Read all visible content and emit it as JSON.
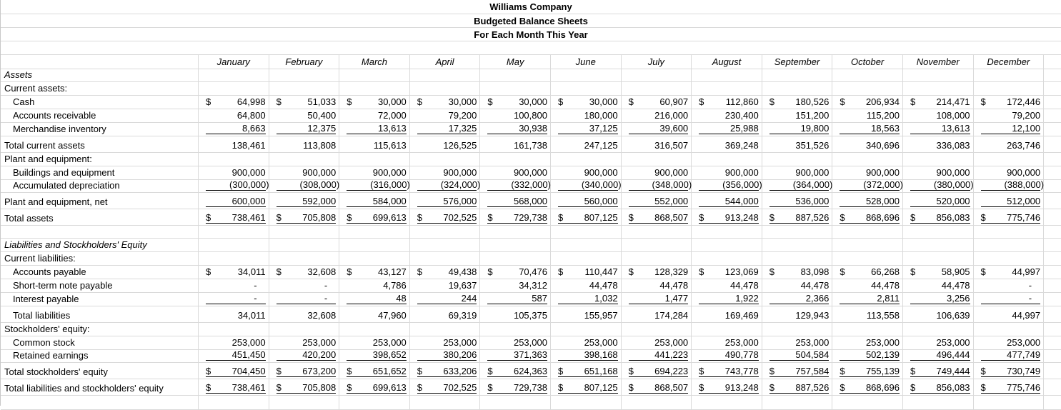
{
  "header": {
    "company": "Williams Company",
    "statement": "Budgeted Balance Sheets",
    "period": "For Each Month This Year"
  },
  "months": [
    "January",
    "February",
    "March",
    "April",
    "May",
    "June",
    "July",
    "August",
    "September",
    "October",
    "November",
    "December"
  ],
  "currency_symbol": "$",
  "rows": [
    {
      "label": "Assets",
      "italic": true
    },
    {
      "label": "Current assets:"
    },
    {
      "label": "Cash",
      "indent": true,
      "dollar": true,
      "values": [
        "64,998",
        "51,033",
        "30,000",
        "30,000",
        "30,000",
        "30,000",
        "60,907",
        "112,860",
        "180,526",
        "206,934",
        "214,471",
        "172,446"
      ]
    },
    {
      "label": "Accounts receivable",
      "indent": true,
      "values": [
        "64,800",
        "50,400",
        "72,000",
        "79,200",
        "100,800",
        "180,000",
        "216,000",
        "230,400",
        "151,200",
        "115,200",
        "108,000",
        "79,200"
      ]
    },
    {
      "label": "Merchandise inventory",
      "indent": true,
      "underline": true,
      "values": [
        "8,663",
        "12,375",
        "13,613",
        "17,325",
        "30,938",
        "37,125",
        "39,600",
        "25,988",
        "19,800",
        "18,563",
        "13,613",
        "12,100"
      ]
    },
    {
      "label": "Total current assets",
      "values": [
        "138,461",
        "113,808",
        "115,613",
        "126,525",
        "161,738",
        "247,125",
        "316,507",
        "369,248",
        "351,526",
        "340,696",
        "336,083",
        "263,746"
      ]
    },
    {
      "label": "Plant and equipment:"
    },
    {
      "label": "Buildings and equipment",
      "indent": true,
      "values": [
        "900,000",
        "900,000",
        "900,000",
        "900,000",
        "900,000",
        "900,000",
        "900,000",
        "900,000",
        "900,000",
        "900,000",
        "900,000",
        "900,000"
      ]
    },
    {
      "label": "Accumulated depreciation",
      "indent": true,
      "underline": true,
      "values": [
        "(300,000)",
        "(308,000)",
        "(316,000)",
        "(324,000)",
        "(332,000)",
        "(340,000)",
        "(348,000)",
        "(356,000)",
        "(364,000)",
        "(372,000)",
        "(380,000)",
        "(388,000)"
      ]
    },
    {
      "label": "Plant and equipment, net",
      "underline": true,
      "values": [
        "600,000",
        "592,000",
        "584,000",
        "576,000",
        "568,000",
        "560,000",
        "552,000",
        "544,000",
        "536,000",
        "528,000",
        "520,000",
        "512,000"
      ]
    },
    {
      "label": "Total assets",
      "dollar": true,
      "underline": true,
      "values": [
        "738,461",
        "705,808",
        "699,613",
        "702,525",
        "729,738",
        "807,125",
        "868,507",
        "913,248",
        "887,526",
        "868,696",
        "856,083",
        "775,746"
      ]
    },
    {
      "label": ""
    },
    {
      "label": "Liabilities and Stockholders' Equity",
      "italic": true
    },
    {
      "label": "Current liabilities:"
    },
    {
      "label": "Accounts payable",
      "indent": true,
      "dollar": true,
      "values": [
        "34,011",
        "32,608",
        "43,127",
        "49,438",
        "70,476",
        "110,447",
        "128,329",
        "123,069",
        "83,098",
        "66,268",
        "58,905",
        "44,997"
      ]
    },
    {
      "label": "Short-term note payable",
      "indent": true,
      "values": [
        "-",
        "-",
        "4,786",
        "19,637",
        "34,312",
        "44,478",
        "44,478",
        "44,478",
        "44,478",
        "44,478",
        "44,478",
        "-"
      ]
    },
    {
      "label": "Interest payable",
      "indent": true,
      "underline": true,
      "values": [
        "-",
        "-",
        "48",
        "244",
        "587",
        "1,032",
        "1,477",
        "1,922",
        "2,366",
        "2,811",
        "3,256",
        "-"
      ]
    },
    {
      "label": "Total liabilities",
      "indent": true,
      "values": [
        "34,011",
        "32,608",
        "47,960",
        "69,319",
        "105,375",
        "155,957",
        "174,284",
        "169,469",
        "129,943",
        "113,558",
        "106,639",
        "44,997"
      ]
    },
    {
      "label": "Stockholders' equity:"
    },
    {
      "label": "Common stock",
      "indent": true,
      "values": [
        "253,000",
        "253,000",
        "253,000",
        "253,000",
        "253,000",
        "253,000",
        "253,000",
        "253,000",
        "253,000",
        "253,000",
        "253,000",
        "253,000"
      ]
    },
    {
      "label": "Retained earnings",
      "indent": true,
      "underline": true,
      "values": [
        "451,450",
        "420,200",
        "398,652",
        "380,206",
        "371,363",
        "398,168",
        "441,223",
        "490,778",
        "504,584",
        "502,139",
        "496,444",
        "477,749"
      ]
    },
    {
      "label": "Total stockholders' equity",
      "dollar": true,
      "underline": true,
      "values": [
        "704,450",
        "673,200",
        "651,652",
        "633,206",
        "624,363",
        "651,168",
        "694,223",
        "743,778",
        "757,584",
        "755,139",
        "749,444",
        "730,749"
      ]
    },
    {
      "label": "Total liabilities and stockholders' equity",
      "dollar": true,
      "underline": true,
      "values": [
        "738,461",
        "705,808",
        "699,613",
        "702,525",
        "729,738",
        "807,125",
        "868,507",
        "913,248",
        "887,526",
        "868,696",
        "856,083",
        "775,746"
      ]
    },
    {
      "label": ""
    }
  ]
}
